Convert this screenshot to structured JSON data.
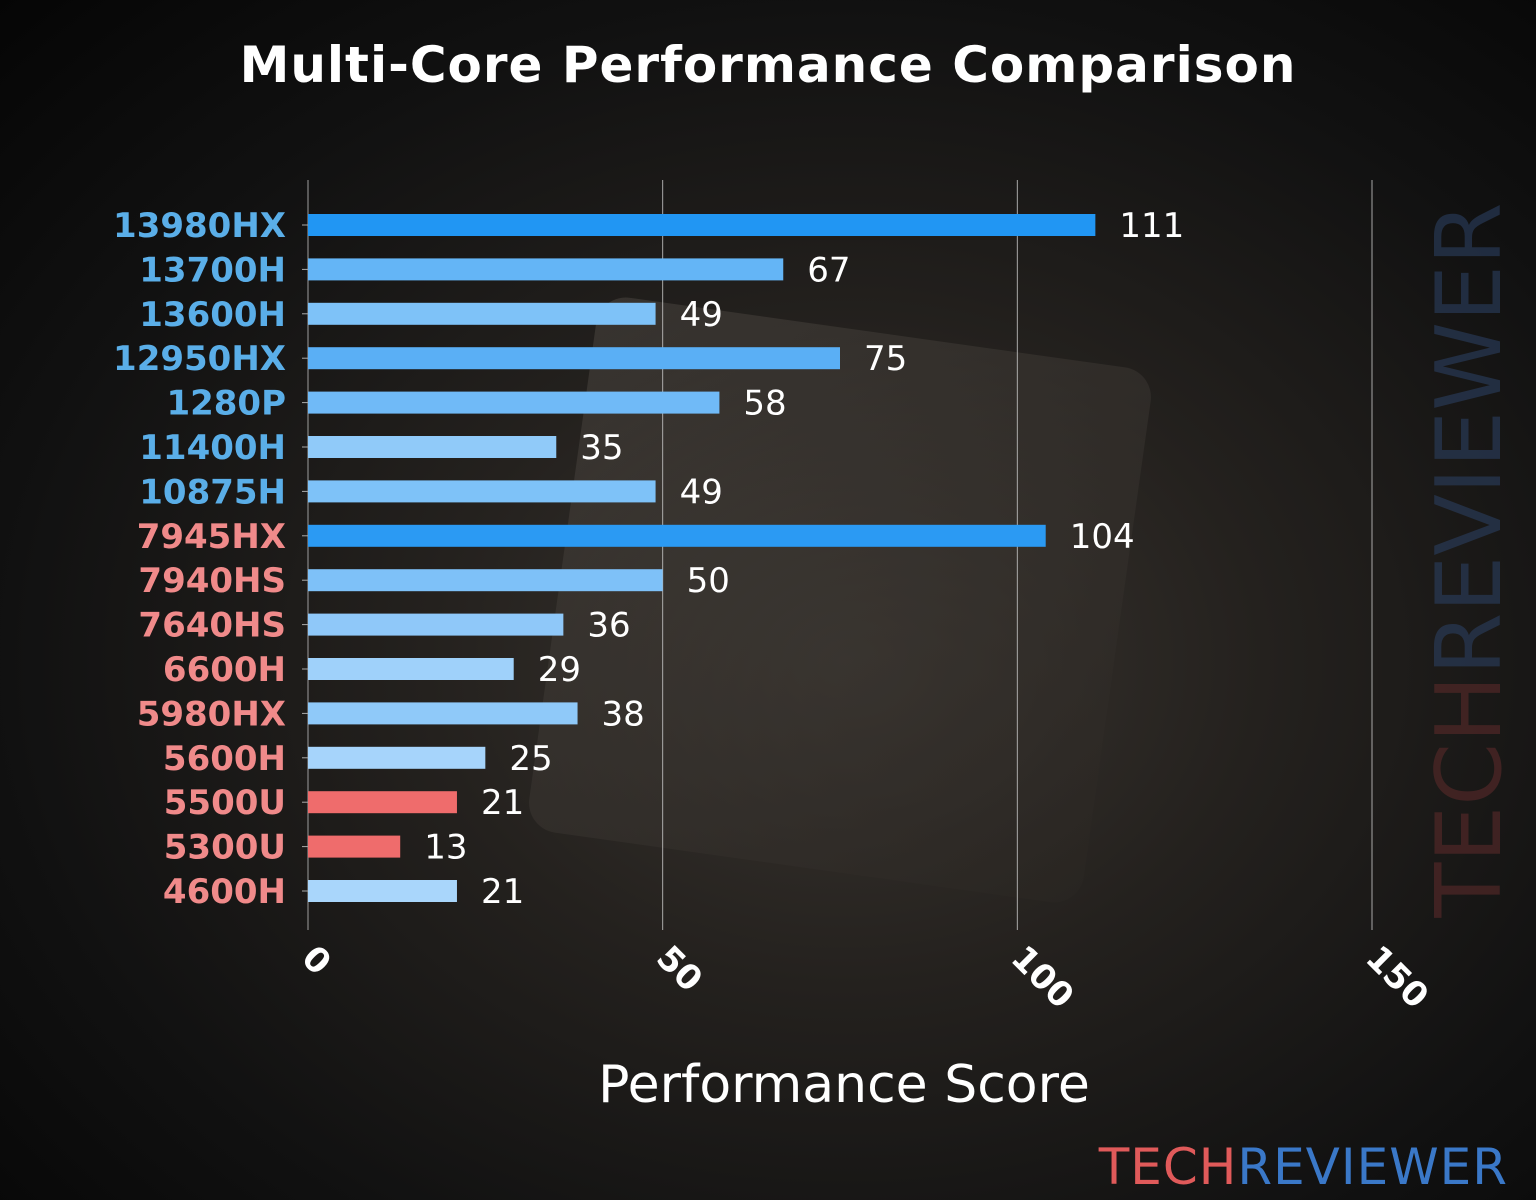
{
  "chart_data": {
    "type": "bar",
    "orientation": "horizontal",
    "title": "Multi-Core Performance Comparison",
    "xlabel": "Performance Score",
    "ylabel": "",
    "xlim": [
      0,
      150
    ],
    "xticks": [
      0,
      50,
      100,
      150
    ],
    "grid": "vertical",
    "categories": [
      "13980HX",
      "13700H",
      "13600H",
      "12950HX",
      "1280P",
      "11400H",
      "10875H",
      "7945HX",
      "7940HS",
      "7640HS",
      "6600H",
      "5980HX",
      "5600H",
      "5500U",
      "5300U",
      "4600H"
    ],
    "values": [
      111,
      67,
      49,
      75,
      58,
      35,
      49,
      104,
      50,
      36,
      29,
      38,
      25,
      21,
      13,
      21
    ],
    "bar_colors": [
      "#2196f3",
      "#64b5f6",
      "#7ec2f8",
      "#5aaff5",
      "#70baf7",
      "#90caf9",
      "#7ec2f8",
      "#2b9af3",
      "#7ec1f8",
      "#8fc8f9",
      "#9fd1fa",
      "#8fc9f9",
      "#a6d4fb",
      "#ef6c6c",
      "#ef6c6c",
      "#a9d6fb"
    ],
    "label_colors": [
      "#5aaee8",
      "#5aaee8",
      "#5aaee8",
      "#5aaee8",
      "#5aaee8",
      "#5aaee8",
      "#5aaee8",
      "#f08a8a",
      "#f08a8a",
      "#f08a8a",
      "#f08a8a",
      "#f08a8a",
      "#f08a8a",
      "#f08a8a",
      "#f08a8a",
      "#f08a8a"
    ]
  },
  "watermark": {
    "part1": "TECH",
    "part2": "REVIEWER"
  }
}
